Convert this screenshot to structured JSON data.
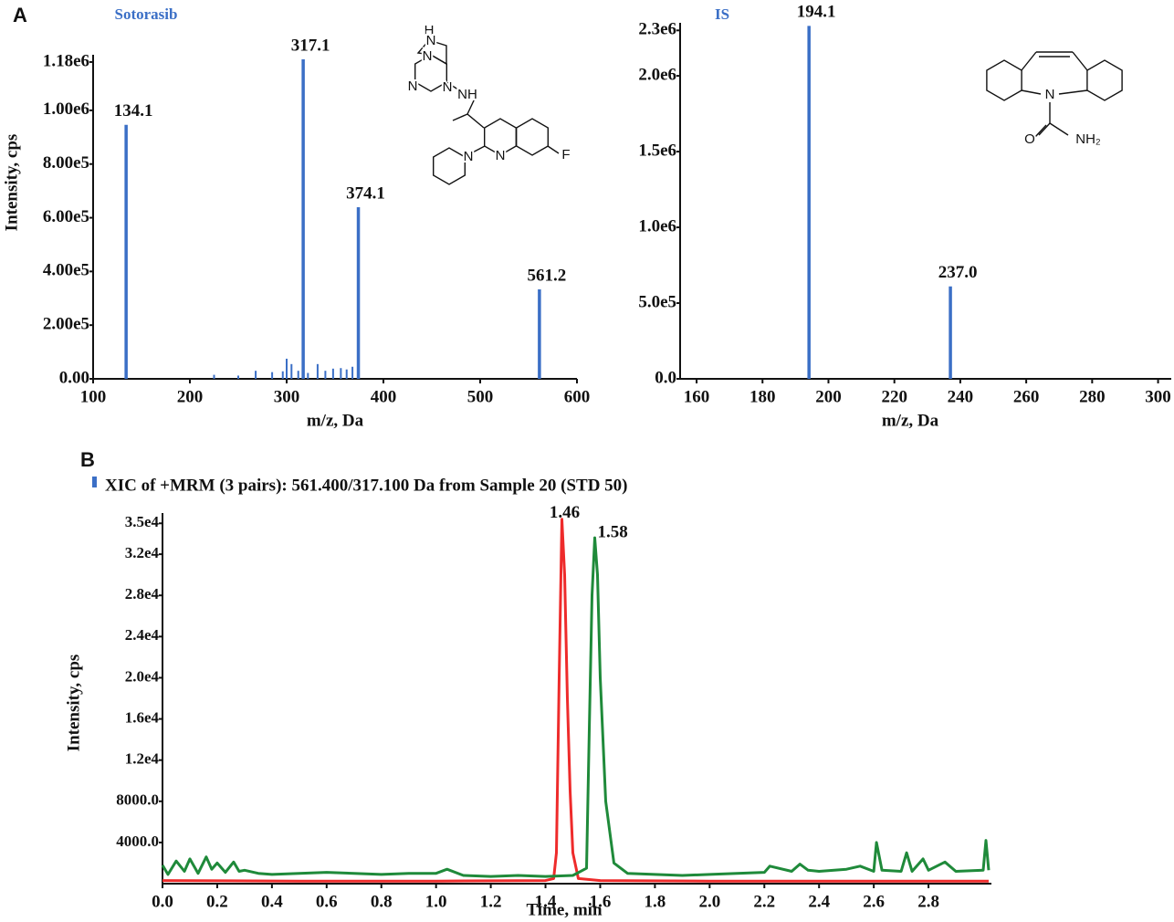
{
  "chart_data": [
    {
      "type": "stem",
      "panel_label": "A",
      "title": "Sotorasib",
      "ylabel": "Intensity, cps",
      "xlabel": "m/z, Da",
      "color": "#3b6fc6",
      "x": [
        134.1,
        317.1,
        374.1,
        561.2
      ],
      "values": [
        946000,
        1190000,
        639000,
        333000
      ],
      "peak_labels": [
        "134.1",
        "317.1",
        "374.1",
        "561.2"
      ],
      "minor_peaks": {
        "x": [
          225,
          250,
          268,
          285,
          296,
          300,
          305,
          312,
          322,
          332,
          340,
          348,
          356,
          362,
          368
        ],
        "values": [
          15000,
          12000,
          30000,
          25000,
          28000,
          75000,
          55000,
          30000,
          22000,
          55000,
          30000,
          38000,
          40000,
          35000,
          45000
        ]
      },
      "structure_labels": [
        "H",
        "N",
        "N",
        "N",
        "N",
        "NH",
        "N",
        "N",
        "F"
      ],
      "xlim": [
        100,
        600
      ],
      "xticks": [
        100,
        200,
        300,
        400,
        500,
        600
      ],
      "ylim": [
        0,
        1207000
      ],
      "yticks": [
        {
          "value": 0,
          "label": "0.00"
        },
        {
          "value": 200000,
          "label": "2.00e5"
        },
        {
          "value": 400000,
          "label": "4.00e5"
        },
        {
          "value": 600000,
          "label": "6.00e5"
        },
        {
          "value": 800000,
          "label": "8.00e5"
        },
        {
          "value": 1000000,
          "label": "1.00e6"
        },
        {
          "value": 1180000,
          "label": "1.18e6"
        }
      ]
    },
    {
      "type": "stem",
      "title": "IS",
      "xlabel": "m/z, Da",
      "color": "#3b6fc6",
      "x": [
        194.1,
        237.0
      ],
      "values": [
        2330000,
        610000
      ],
      "peak_labels": [
        "194.1",
        "237.0"
      ],
      "structure_labels": [
        "N",
        "O",
        "NH₂"
      ],
      "xlim": [
        155,
        304
      ],
      "xticks": [
        160,
        180,
        200,
        220,
        240,
        260,
        280,
        300
      ],
      "ylim": [
        0,
        2350000
      ],
      "yticks": [
        {
          "value": 0,
          "label": "0.0"
        },
        {
          "value": 500000,
          "label": "5.0e5"
        },
        {
          "value": 1000000,
          "label": "1.0e6"
        },
        {
          "value": 1500000,
          "label": "1.5e6"
        },
        {
          "value": 2000000,
          "label": "2.0e6"
        },
        {
          "value": 2300000,
          "label": "2.3e6"
        }
      ]
    },
    {
      "type": "line",
      "panel_label": "B",
      "title": "XIC of +MRM (3 pairs): 561.400/317.100 Da  from Sample 20 (STD 50)",
      "ylabel": "Intensity, cps",
      "xlabel": "Time, min",
      "series": [
        {
          "color": "#ee2b2b",
          "x": [
            0,
            0.5,
            1.0,
            1.4,
            1.43,
            1.44,
            1.45,
            1.46,
            1.47,
            1.48,
            1.49,
            1.5,
            1.52,
            1.6,
            2.0,
            2.5,
            3.02
          ],
          "values": [
            300,
            250,
            250,
            300,
            500,
            3000,
            20000,
            35400,
            30000,
            18000,
            9000,
            3000,
            500,
            300,
            250,
            250,
            250
          ]
        },
        {
          "color": "#1f8a3a",
          "x": [
            0,
            0.02,
            0.05,
            0.08,
            0.1,
            0.13,
            0.16,
            0.18,
            0.2,
            0.23,
            0.26,
            0.28,
            0.3,
            0.35,
            0.4,
            0.5,
            0.6,
            0.7,
            0.8,
            0.9,
            1.0,
            1.04,
            1.1,
            1.2,
            1.3,
            1.4,
            1.5,
            1.55,
            1.56,
            1.57,
            1.58,
            1.59,
            1.6,
            1.62,
            1.65,
            1.7,
            1.8,
            1.9,
            2.0,
            2.1,
            2.2,
            2.22,
            2.3,
            2.33,
            2.36,
            2.4,
            2.5,
            2.55,
            2.6,
            2.61,
            2.63,
            2.7,
            2.72,
            2.74,
            2.78,
            2.8,
            2.86,
            2.9,
            3.0,
            3.01,
            3.02
          ],
          "values": [
            1800,
            900,
            2200,
            1200,
            2400,
            1000,
            2600,
            1400,
            2000,
            1100,
            2100,
            1200,
            1300,
            1000,
            900,
            1000,
            1100,
            1000,
            900,
            1000,
            1000,
            1400,
            800,
            700,
            800,
            700,
            800,
            1500,
            15000,
            28000,
            33600,
            30000,
            20000,
            8000,
            2000,
            1000,
            900,
            800,
            900,
            1000,
            1100,
            1700,
            1200,
            1900,
            1300,
            1200,
            1400,
            1700,
            1200,
            4000,
            1300,
            1200,
            3000,
            1200,
            2400,
            1300,
            2100,
            1200,
            1300,
            4200,
            1300
          ]
        }
      ],
      "peak_labels": [
        "1.46",
        "1.58"
      ],
      "xlim": [
        0,
        3.03
      ],
      "xticks": [
        {
          "value": 0,
          "label": "0.0"
        },
        0.2,
        0.4,
        0.6,
        0.8,
        {
          "value": 1,
          "label": "1.0"
        },
        1.2,
        1.4,
        1.6,
        1.8,
        {
          "value": 2,
          "label": "2.0"
        },
        2.2,
        2.4,
        2.6,
        2.8
      ],
      "ylim": [
        0,
        36000
      ],
      "yticks": [
        {
          "value": 4000,
          "label": "4000.0"
        },
        {
          "value": 8000,
          "label": "8000.0"
        },
        {
          "value": 12000,
          "label": "1.2e4"
        },
        {
          "value": 16000,
          "label": "1.6e4"
        },
        {
          "value": 20000,
          "label": "2.0e4"
        },
        {
          "value": 24000,
          "label": "2.4e4"
        },
        {
          "value": 28000,
          "label": "2.8e4"
        },
        {
          "value": 32000,
          "label": "3.2e4"
        },
        {
          "value": 35000,
          "label": "3.5e4"
        }
      ]
    }
  ]
}
